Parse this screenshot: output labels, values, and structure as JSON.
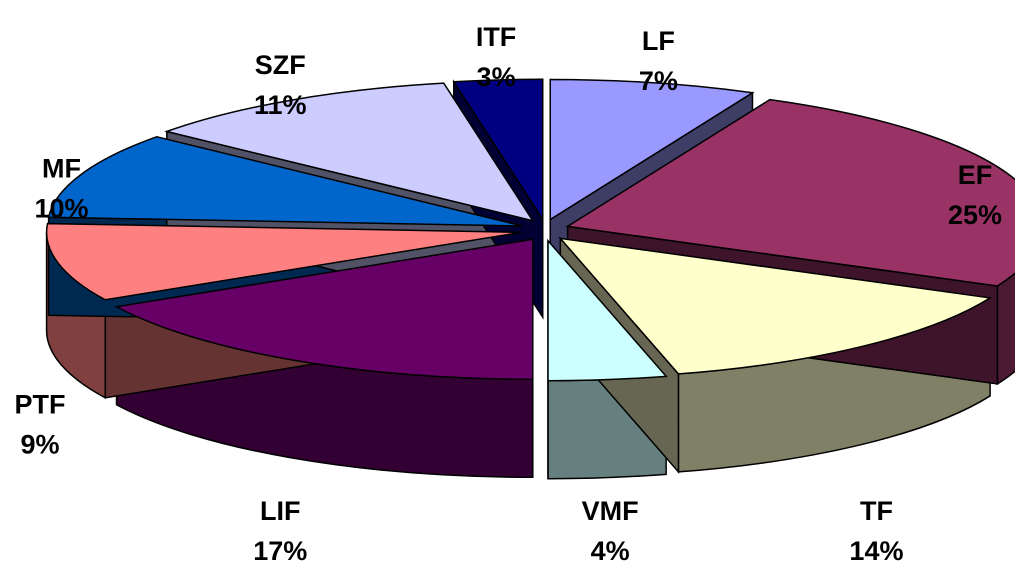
{
  "chart_data": {
    "type": "pie",
    "title": "",
    "slices": [
      {
        "label": "LF",
        "percent_label": "7%",
        "value": 7,
        "color": "#9999FF"
      },
      {
        "label": "EF",
        "percent_label": "25%",
        "value": 25,
        "color": "#993366"
      },
      {
        "label": "TF",
        "percent_label": "14%",
        "value": 14,
        "color": "#FFFFCC"
      },
      {
        "label": "VMF",
        "percent_label": "4%",
        "value": 4,
        "color": "#CCFFFF"
      },
      {
        "label": "LIF",
        "percent_label": "17%",
        "value": 17,
        "color": "#660066"
      },
      {
        "label": "PTF",
        "percent_label": "9%",
        "value": 9,
        "color": "#FF8080"
      },
      {
        "label": "MF",
        "percent_label": "10%",
        "value": 10,
        "color": "#0066CC"
      },
      {
        "label": "SZF",
        "percent_label": "11%",
        "value": 11,
        "color": "#CCCCFF"
      },
      {
        "label": "ITF",
        "percent_label": "3%",
        "value": 3,
        "color": "#000080"
      }
    ],
    "style": "3d-exploded",
    "legend": "none"
  }
}
